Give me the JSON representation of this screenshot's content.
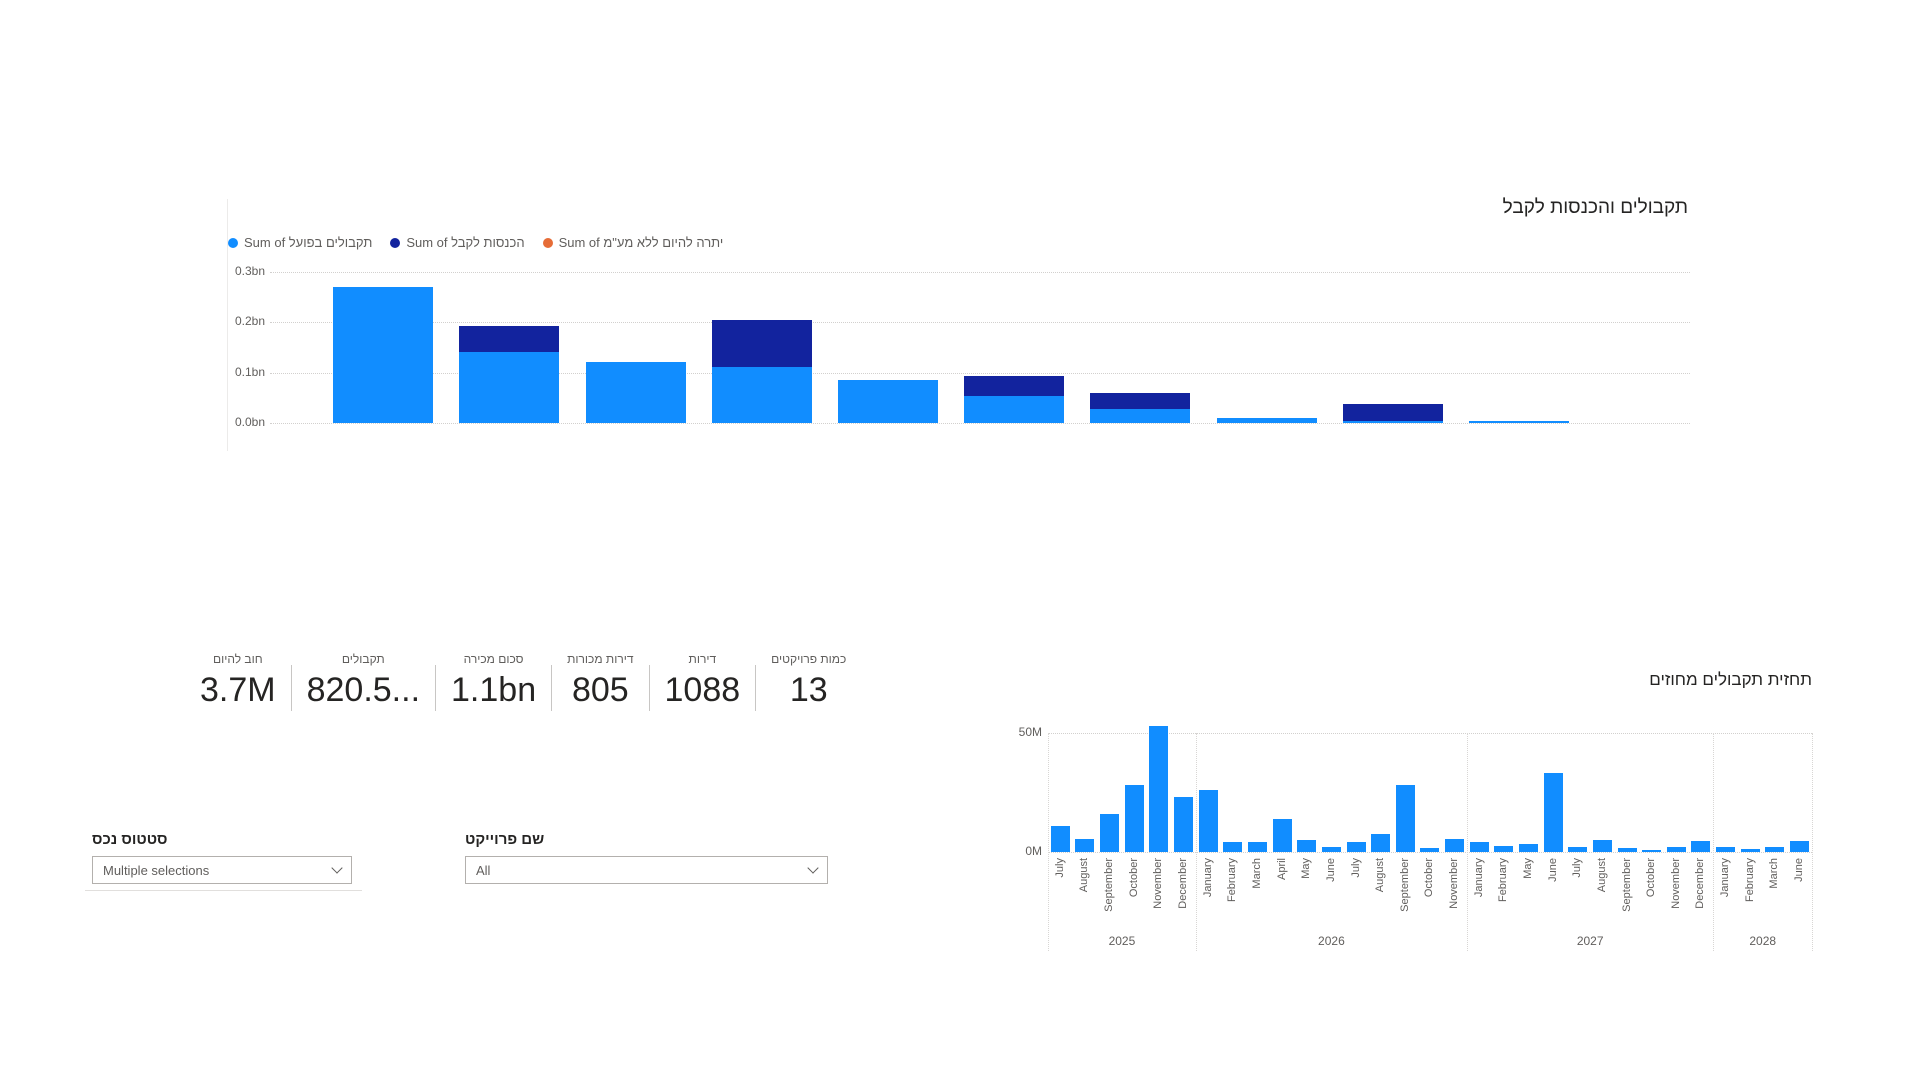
{
  "main_chart": {
    "title": "תקבולים והכנסות לקבל",
    "y_ticks_top_to_bottom": [
      "0.3bn",
      "0.2bn",
      "0.1bn",
      "0.0bn"
    ]
  },
  "forecast_chart": {
    "title": "תחזית תקבולים מחוזים",
    "y_ticks_top_to_bottom": [
      "50M",
      "0M"
    ]
  },
  "kpis": [
    {
      "label": "חוב להיום",
      "value": "3.7M"
    },
    {
      "label": "תקבולים",
      "value": "820.5..."
    },
    {
      "label": "סכום מכירה",
      "value": "1.1bn"
    },
    {
      "label": "דירות מכורות",
      "value": "805"
    },
    {
      "label": "דירות",
      "value": "1088"
    },
    {
      "label": "כמות פרויקטים",
      "value": "13"
    }
  ],
  "slicers": [
    {
      "label": "סטטוס נכס",
      "value": "Multiple selections"
    },
    {
      "label": "שם פרוייקט",
      "value": "All"
    }
  ],
  "colors": {
    "actual_receipts": "#118DFF",
    "income_receivable": "#12239E",
    "balance_excl_vat": "#E66C37",
    "text_dark": "#252423",
    "text_gray": "#605E5C"
  },
  "chart_data": [
    {
      "type": "bar",
      "stacked": true,
      "title": "תקבולים והכנסות לקבל",
      "xlabel": "",
      "ylabel": "",
      "ylim": [
        0,
        0.3
      ],
      "unit": "bn",
      "grid": "dotted-horizontal",
      "legend_position": "top-left",
      "y_tick_labels": [
        "0.0bn",
        "0.1bn",
        "0.2bn",
        "0.3bn"
      ],
      "categories": [
        "",
        "",
        "",
        "",
        "",
        "",
        "",
        "",
        "",
        ""
      ],
      "series": [
        {
          "name": "Sum of תקבולים בפועל",
          "color": "#118DFF",
          "values": [
            0.27,
            0.141,
            0.121,
            0.111,
            0.085,
            0.054,
            0.028,
            0.01,
            0.003,
            0.004
          ]
        },
        {
          "name": "Sum of הכנסות לקבל",
          "color": "#12239E",
          "values": [
            0,
            0.052,
            0,
            0.094,
            0,
            0.04,
            0.031,
            0,
            0.034,
            0
          ]
        },
        {
          "name": "Sum of יתרה להיום ללא מע\"מ",
          "color": "#E66C37",
          "values": [
            0,
            0,
            0,
            0,
            0,
            0,
            0,
            0,
            0,
            0
          ]
        }
      ]
    },
    {
      "type": "bar",
      "stacked": false,
      "title": "תחזית תקבולים מחוזים",
      "xlabel": "",
      "ylabel": "",
      "ylim": [
        0,
        50
      ],
      "unit": "M",
      "grid": "dotted-horizontal",
      "y_tick_labels": [
        "0M",
        "50M"
      ],
      "bar_color": "#118DFF",
      "groups": [
        {
          "year": "2025",
          "months": [
            "July",
            "August",
            "September",
            "October",
            "November",
            "December"
          ],
          "values": [
            11,
            5.5,
            16,
            28,
            53,
            23
          ]
        },
        {
          "year": "2026",
          "months": [
            "January",
            "February",
            "March",
            "April",
            "May",
            "June",
            "July",
            "August",
            "September",
            "October",
            "November"
          ],
          "values": [
            26,
            4,
            4,
            14,
            5,
            2,
            4,
            7.5,
            28,
            1.5,
            5.5
          ]
        },
        {
          "year": "2027",
          "months": [
            "January",
            "February",
            "May",
            "June",
            "July",
            "August",
            "September",
            "October",
            "November",
            "December"
          ],
          "values": [
            4,
            2.5,
            3.5,
            33,
            2,
            5,
            1.5,
            1,
            2,
            4.5
          ]
        },
        {
          "year": "2028",
          "months": [
            "January",
            "February",
            "March",
            "June"
          ],
          "values": [
            2,
            1.2,
            2.2,
            4.5
          ]
        }
      ]
    }
  ]
}
